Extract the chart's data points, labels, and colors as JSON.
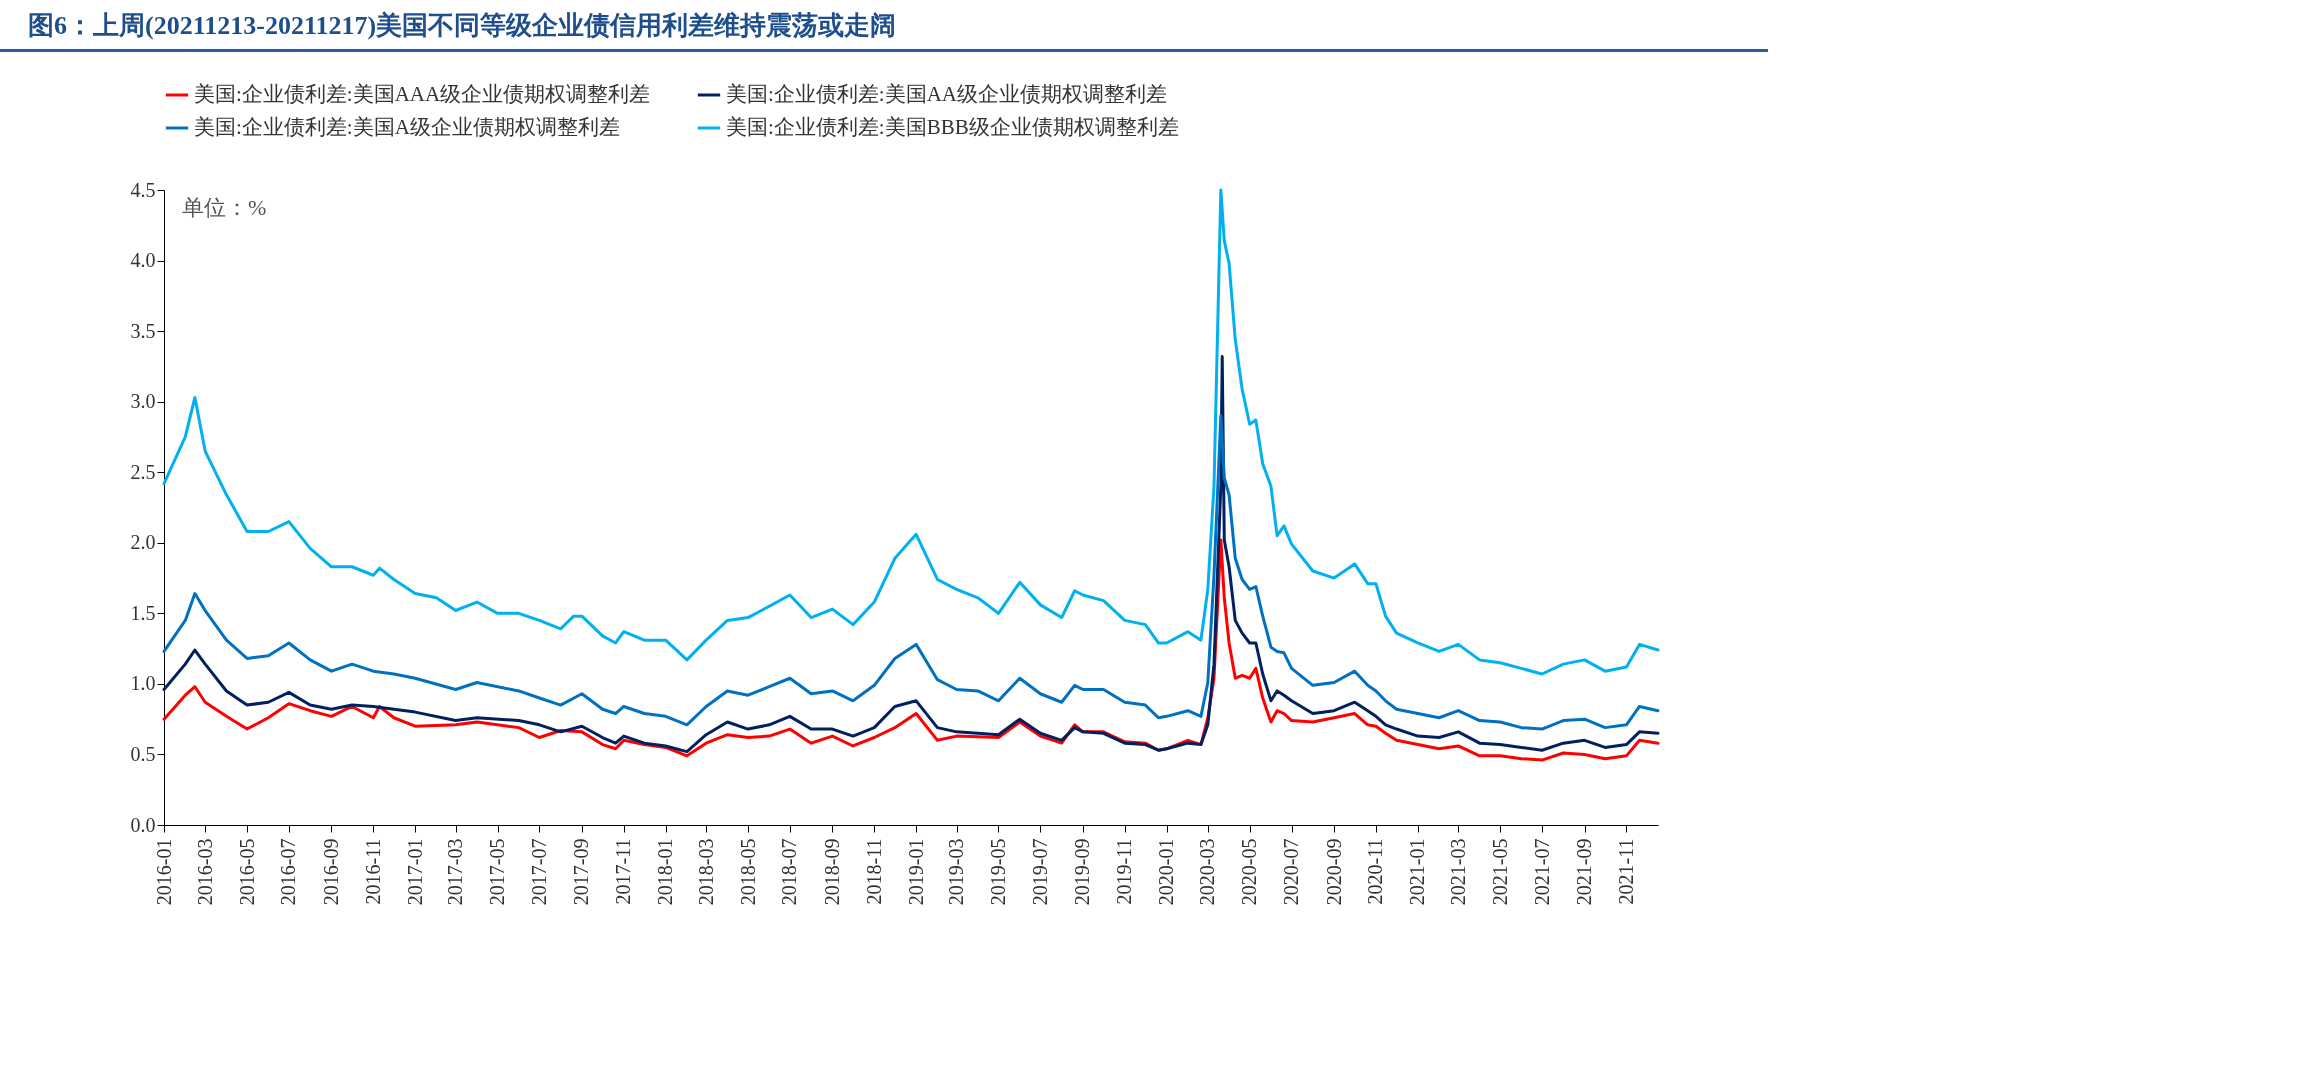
{
  "chart_data": {
    "type": "line",
    "title": "图6：上周(20211213-20211217)美国不同等级企业债信用利差维持震荡或走阔",
    "annotations": [
      "单位：%"
    ],
    "xlim": [
      "2016-01-01",
      "2021-12-17"
    ],
    "xticks": [
      "2016-01",
      "2016-03",
      "2016-05",
      "2016-07",
      "2016-09",
      "2016-11",
      "2017-01",
      "2017-03",
      "2017-05",
      "2017-07",
      "2017-09",
      "2017-11",
      "2018-01",
      "2018-03",
      "2018-05",
      "2018-07",
      "2018-09",
      "2018-11",
      "2019-01",
      "2019-03",
      "2019-05",
      "2019-07",
      "2019-09",
      "2019-11",
      "2020-01",
      "2020-03",
      "2020-05",
      "2020-07",
      "2020-09",
      "2020-11",
      "2021-01",
      "2021-03",
      "2021-05",
      "2021-07",
      "2021-09",
      "2021-11"
    ],
    "ylim": [
      0,
      4.5
    ],
    "yticks": [
      {
        "value": 0,
        "label": "0.0"
      },
      0.5,
      {
        "value": 1,
        "label": "1.0"
      },
      1.5,
      {
        "value": 2,
        "label": "2.0"
      },
      2.5,
      {
        "value": 3,
        "label": "3.0"
      },
      3.5,
      {
        "value": 4,
        "label": "4.0"
      },
      4.5
    ],
    "grid": false,
    "legend": "top",
    "line_style": "solid",
    "marker": "none",
    "series": [
      {
        "name": "美国:企业债利差:美国AAA级企业债期权调整利差",
        "color": "#ff0000",
        "x": [
          "2016-01-01",
          "2016-02-01",
          "2016-02-15",
          "2016-03-01",
          "2016-04-01",
          "2016-05-01",
          "2016-06-01",
          "2016-07-01",
          "2016-08-01",
          "2016-09-01",
          "2016-10-01",
          "2016-11-01",
          "2016-11-10",
          "2016-12-01",
          "2017-01-01",
          "2017-03-01",
          "2017-04-01",
          "2017-06-01",
          "2017-07-01",
          "2017-08-01",
          "2017-09-01",
          "2017-10-01",
          "2017-10-20",
          "2017-11-01",
          "2017-12-01",
          "2018-01-01",
          "2018-02-01",
          "2018-03-01",
          "2018-04-01",
          "2018-05-01",
          "2018-06-01",
          "2018-07-01",
          "2018-08-01",
          "2018-09-01",
          "2018-10-01",
          "2018-11-01",
          "2018-12-01",
          "2019-01-01",
          "2019-02-01",
          "2019-03-01",
          "2019-05-01",
          "2019-06-01",
          "2019-07-01",
          "2019-08-01",
          "2019-08-20",
          "2019-09-01",
          "2019-10-01",
          "2019-11-01",
          "2019-12-01",
          "2019-12-20",
          "2020-01-01",
          "2020-02-01",
          "2020-02-20",
          "2020-03-01",
          "2020-03-10",
          "2020-03-20",
          "2020-03-25",
          "2020-04-01",
          "2020-04-10",
          "2020-04-20",
          "2020-05-01",
          "2020-05-10",
          "2020-05-20",
          "2020-06-01",
          "2020-06-10",
          "2020-06-20",
          "2020-07-01",
          "2020-08-01",
          "2020-09-01",
          "2020-10-01",
          "2020-10-20",
          "2020-11-01",
          "2020-11-15",
          "2020-12-01",
          "2021-01-01",
          "2021-02-01",
          "2021-03-01",
          "2021-04-01",
          "2021-05-01",
          "2021-06-01",
          "2021-07-01",
          "2021-08-01",
          "2021-09-01",
          "2021-10-01",
          "2021-11-01",
          "2021-11-20",
          "2021-12-17"
        ],
        "values": [
          0.75,
          0.92,
          0.98,
          0.87,
          0.77,
          0.68,
          0.76,
          0.86,
          0.81,
          0.77,
          0.84,
          0.76,
          0.84,
          0.76,
          0.7,
          0.71,
          0.73,
          0.69,
          0.62,
          0.67,
          0.66,
          0.57,
          0.54,
          0.6,
          0.57,
          0.55,
          0.49,
          0.58,
          0.64,
          0.62,
          0.63,
          0.68,
          0.58,
          0.63,
          0.56,
          0.62,
          0.69,
          0.79,
          0.6,
          0.63,
          0.62,
          0.73,
          0.63,
          0.58,
          0.71,
          0.66,
          0.66,
          0.59,
          0.58,
          0.53,
          0.54,
          0.6,
          0.57,
          0.76,
          1.04,
          2.02,
          1.61,
          1.29,
          1.04,
          1.06,
          1.04,
          1.11,
          0.9,
          0.73,
          0.81,
          0.79,
          0.74,
          0.73,
          0.76,
          0.79,
          0.71,
          0.7,
          0.65,
          0.6,
          0.57,
          0.54,
          0.56,
          0.49,
          0.49,
          0.47,
          0.46,
          0.51,
          0.5,
          0.47,
          0.49,
          0.6,
          0.58
        ]
      },
      {
        "name": "美国:企业债利差:美国AA级企业债期权调整利差",
        "color": "#002060",
        "x": [
          "2016-01-01",
          "2016-02-01",
          "2016-02-15",
          "2016-03-01",
          "2016-04-01",
          "2016-05-01",
          "2016-06-01",
          "2016-07-01",
          "2016-08-01",
          "2016-09-01",
          "2016-10-01",
          "2016-11-01",
          "2016-12-01",
          "2017-01-01",
          "2017-03-01",
          "2017-04-01",
          "2017-06-01",
          "2017-07-01",
          "2017-08-01",
          "2017-09-01",
          "2017-10-01",
          "2017-10-20",
          "2017-11-01",
          "2017-12-01",
          "2018-01-01",
          "2018-02-01",
          "2018-03-01",
          "2018-04-01",
          "2018-05-01",
          "2018-06-01",
          "2018-07-01",
          "2018-08-01",
          "2018-09-01",
          "2018-10-01",
          "2018-11-01",
          "2018-12-01",
          "2019-01-01",
          "2019-02-01",
          "2019-03-01",
          "2019-04-01",
          "2019-05-01",
          "2019-06-01",
          "2019-07-01",
          "2019-08-01",
          "2019-08-20",
          "2019-09-01",
          "2019-10-01",
          "2019-11-01",
          "2019-12-01",
          "2019-12-20",
          "2020-01-01",
          "2020-02-01",
          "2020-02-20",
          "2020-03-01",
          "2020-03-10",
          "2020-03-20",
          "2020-03-22",
          "2020-03-25",
          "2020-04-01",
          "2020-04-10",
          "2020-04-20",
          "2020-05-01",
          "2020-05-10",
          "2020-05-20",
          "2020-06-01",
          "2020-06-10",
          "2020-06-20",
          "2020-07-01",
          "2020-08-01",
          "2020-09-01",
          "2020-10-01",
          "2020-10-20",
          "2020-11-01",
          "2020-11-15",
          "2020-12-01",
          "2021-01-01",
          "2021-02-01",
          "2021-03-01",
          "2021-04-01",
          "2021-05-01",
          "2021-06-01",
          "2021-07-01",
          "2021-08-01",
          "2021-09-01",
          "2021-10-01",
          "2021-11-01",
          "2021-11-20",
          "2021-12-17"
        ],
        "values": [
          0.96,
          1.14,
          1.24,
          1.14,
          0.95,
          0.85,
          0.87,
          0.94,
          0.85,
          0.82,
          0.85,
          0.84,
          0.82,
          0.8,
          0.74,
          0.76,
          0.74,
          0.71,
          0.66,
          0.7,
          0.62,
          0.58,
          0.63,
          0.58,
          0.56,
          0.52,
          0.64,
          0.73,
          0.68,
          0.71,
          0.77,
          0.68,
          0.68,
          0.63,
          0.69,
          0.84,
          0.88,
          0.69,
          0.66,
          0.65,
          0.64,
          0.75,
          0.65,
          0.6,
          0.69,
          0.66,
          0.65,
          0.58,
          0.57,
          0.53,
          0.54,
          0.58,
          0.57,
          0.71,
          1.14,
          2.4,
          3.32,
          2.02,
          1.83,
          1.45,
          1.36,
          1.29,
          1.29,
          1.07,
          0.88,
          0.95,
          0.92,
          0.88,
          0.79,
          0.81,
          0.87,
          0.81,
          0.77,
          0.71,
          0.68,
          0.63,
          0.62,
          0.66,
          0.58,
          0.57,
          0.55,
          0.53,
          0.58,
          0.6,
          0.55,
          0.57,
          0.66,
          0.65
        ]
      },
      {
        "name": "美国:企业债利差:美国A级企业债期权调整利差",
        "color": "#0070c0",
        "x": [
          "2016-01-01",
          "2016-02-01",
          "2016-02-15",
          "2016-03-01",
          "2016-04-01",
          "2016-05-01",
          "2016-06-01",
          "2016-07-01",
          "2016-08-01",
          "2016-09-01",
          "2016-10-01",
          "2016-11-01",
          "2016-12-01",
          "2017-01-01",
          "2017-03-01",
          "2017-04-01",
          "2017-06-01",
          "2017-07-01",
          "2017-08-01",
          "2017-09-01",
          "2017-10-01",
          "2017-10-20",
          "2017-11-01",
          "2017-12-01",
          "2018-01-01",
          "2018-02-01",
          "2018-03-01",
          "2018-04-01",
          "2018-05-01",
          "2018-06-01",
          "2018-07-01",
          "2018-08-01",
          "2018-09-01",
          "2018-10-01",
          "2018-11-01",
          "2018-12-01",
          "2019-01-01",
          "2019-02-01",
          "2019-03-01",
          "2019-04-01",
          "2019-05-01",
          "2019-06-01",
          "2019-07-01",
          "2019-08-01",
          "2019-08-20",
          "2019-09-01",
          "2019-10-01",
          "2019-11-01",
          "2019-12-01",
          "2019-12-20",
          "2020-01-01",
          "2020-02-01",
          "2020-02-20",
          "2020-03-01",
          "2020-03-10",
          "2020-03-20",
          "2020-03-25",
          "2020-04-01",
          "2020-04-10",
          "2020-04-20",
          "2020-05-01",
          "2020-05-10",
          "2020-05-20",
          "2020-06-01",
          "2020-06-10",
          "2020-06-20",
          "2020-07-01",
          "2020-08-01",
          "2020-09-01",
          "2020-10-01",
          "2020-10-20",
          "2020-11-01",
          "2020-11-15",
          "2020-12-01",
          "2021-01-01",
          "2021-02-01",
          "2021-03-01",
          "2021-04-01",
          "2021-05-01",
          "2021-06-01",
          "2021-07-01",
          "2021-08-01",
          "2021-09-01",
          "2021-10-01",
          "2021-11-01",
          "2021-11-20",
          "2021-12-17"
        ],
        "values": [
          1.23,
          1.45,
          1.64,
          1.52,
          1.31,
          1.18,
          1.2,
          1.29,
          1.17,
          1.09,
          1.14,
          1.09,
          1.07,
          1.04,
          0.96,
          1.01,
          0.95,
          0.9,
          0.85,
          0.93,
          0.82,
          0.79,
          0.84,
          0.79,
          0.77,
          0.71,
          0.84,
          0.95,
          0.92,
          0.98,
          1.04,
          0.93,
          0.95,
          0.88,
          0.99,
          1.18,
          1.28,
          1.03,
          0.96,
          0.95,
          0.88,
          1.04,
          0.93,
          0.87,
          0.99,
          0.96,
          0.96,
          0.87,
          0.85,
          0.76,
          0.77,
          0.81,
          0.77,
          1.01,
          1.77,
          2.9,
          2.46,
          2.34,
          1.89,
          1.74,
          1.67,
          1.69,
          1.48,
          1.26,
          1.23,
          1.22,
          1.11,
          0.99,
          1.01,
          1.09,
          0.99,
          0.95,
          0.88,
          0.82,
          0.79,
          0.76,
          0.81,
          0.74,
          0.73,
          0.69,
          0.68,
          0.74,
          0.75,
          0.69,
          0.71,
          0.84,
          0.81
        ]
      },
      {
        "name": "美国:企业债利差:美国BBB级企业债期权调整利差",
        "color": "#00b0f0",
        "x": [
          "2016-01-01",
          "2016-02-01",
          "2016-02-15",
          "2016-03-01",
          "2016-04-01",
          "2016-05-01",
          "2016-06-01",
          "2016-07-01",
          "2016-08-01",
          "2016-09-01",
          "2016-10-01",
          "2016-11-01",
          "2016-11-10",
          "2016-12-01",
          "2017-01-01",
          "2017-02-01",
          "2017-03-01",
          "2017-04-01",
          "2017-05-01",
          "2017-06-01",
          "2017-07-01",
          "2017-08-01",
          "2017-08-20",
          "2017-09-01",
          "2017-10-01",
          "2017-10-20",
          "2017-11-01",
          "2017-12-01",
          "2018-01-01",
          "2018-02-01",
          "2018-03-01",
          "2018-04-01",
          "2018-05-01",
          "2018-06-01",
          "2018-07-01",
          "2018-08-01",
          "2018-09-01",
          "2018-10-01",
          "2018-11-01",
          "2018-12-01",
          "2019-01-01",
          "2019-02-01",
          "2019-03-01",
          "2019-04-01",
          "2019-05-01",
          "2019-06-01",
          "2019-07-01",
          "2019-08-01",
          "2019-08-20",
          "2019-09-01",
          "2019-10-01",
          "2019-11-01",
          "2019-12-01",
          "2019-12-20",
          "2020-01-01",
          "2020-02-01",
          "2020-02-20",
          "2020-03-01",
          "2020-03-10",
          "2020-03-20",
          "2020-03-25",
          "2020-04-01",
          "2020-04-10",
          "2020-04-20",
          "2020-05-01",
          "2020-05-10",
          "2020-05-20",
          "2020-06-01",
          "2020-06-10",
          "2020-06-20",
          "2020-07-01",
          "2020-08-01",
          "2020-09-01",
          "2020-10-01",
          "2020-10-20",
          "2020-11-01",
          "2020-11-15",
          "2020-12-01",
          "2021-01-01",
          "2021-02-01",
          "2021-03-01",
          "2021-04-01",
          "2021-05-01",
          "2021-06-01",
          "2021-07-01",
          "2021-08-01",
          "2021-09-01",
          "2021-10-01",
          "2021-11-01",
          "2021-11-20",
          "2021-12-17"
        ],
        "values": [
          2.42,
          2.75,
          3.03,
          2.65,
          2.34,
          2.08,
          2.08,
          2.15,
          1.96,
          1.83,
          1.83,
          1.77,
          1.82,
          1.74,
          1.64,
          1.61,
          1.52,
          1.58,
          1.5,
          1.5,
          1.45,
          1.39,
          1.48,
          1.48,
          1.34,
          1.29,
          1.37,
          1.31,
          1.31,
          1.17,
          1.31,
          1.45,
          1.47,
          1.55,
          1.63,
          1.47,
          1.53,
          1.42,
          1.58,
          1.89,
          2.06,
          1.74,
          1.67,
          1.61,
          1.5,
          1.72,
          1.56,
          1.47,
          1.66,
          1.63,
          1.59,
          1.45,
          1.42,
          1.29,
          1.29,
          1.37,
          1.31,
          1.67,
          2.4,
          4.5,
          4.14,
          3.98,
          3.44,
          3.09,
          2.84,
          2.87,
          2.56,
          2.4,
          2.05,
          2.12,
          1.99,
          1.8,
          1.75,
          1.85,
          1.71,
          1.71,
          1.48,
          1.36,
          1.29,
          1.23,
          1.28,
          1.17,
          1.15,
          1.11,
          1.07,
          1.14,
          1.17,
          1.09,
          1.12,
          1.28,
          1.24
        ]
      }
    ]
  }
}
